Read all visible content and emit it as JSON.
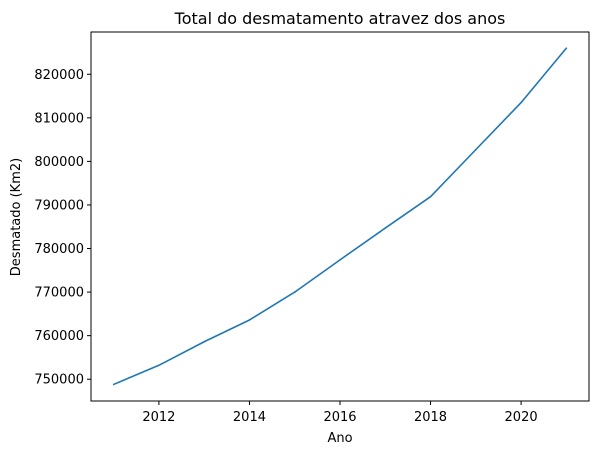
{
  "chart_data": {
    "type": "line",
    "title": "Total do desmatamento atravez dos anos",
    "xlabel": "Ano",
    "ylabel": "Desmatado (Km2)",
    "xlim": [
      2010.5,
      2021.5
    ],
    "ylim": [
      745000,
      829700
    ],
    "xticks": [
      2012,
      2014,
      2016,
      2018,
      2020
    ],
    "yticks": [
      750000,
      760000,
      770000,
      780000,
      790000,
      800000,
      810000,
      820000
    ],
    "grid": false,
    "series": [
      {
        "x": [
          2011,
          2012,
          2013,
          2014,
          2015,
          2016,
          2017,
          2018,
          2019,
          2020,
          2021
        ],
        "y": [
          748800,
          753200,
          758600,
          763600,
          770000,
          777400,
          784700,
          791900,
          802700,
          813500,
          826000
        ],
        "color": "#1f77b4"
      }
    ]
  }
}
